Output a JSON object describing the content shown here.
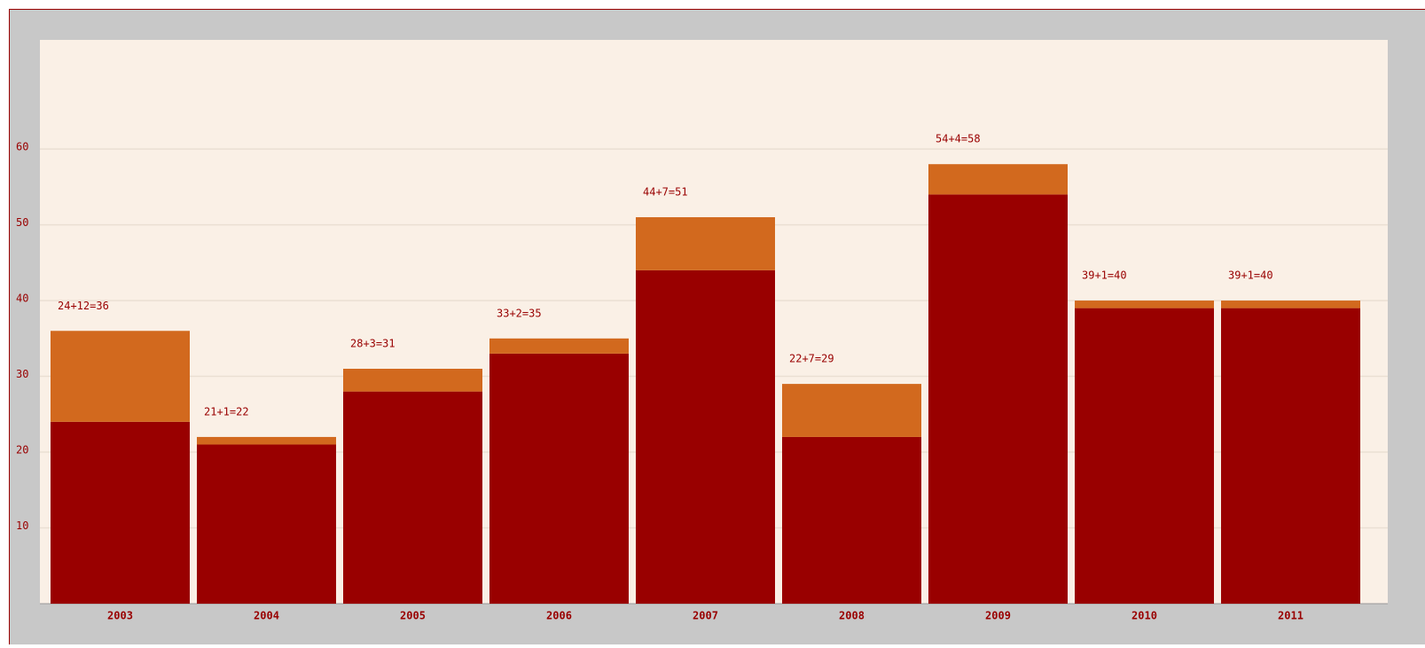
{
  "chart_data": {
    "type": "stacked_bar",
    "categories": [
      "2003",
      "2004",
      "2005",
      "2006",
      "2007",
      "2008",
      "2009",
      "2010",
      "2011"
    ],
    "series": [
      {
        "color": "#990000",
        "values": [
          24,
          21,
          28,
          33,
          44,
          22,
          54,
          39,
          39
        ]
      },
      {
        "color": "#d2691e",
        "values": [
          12,
          1,
          3,
          2,
          7,
          7,
          4,
          1,
          1
        ]
      }
    ],
    "value_labels": [
      "24+12=36",
      "21+1=22",
      "28+3=31",
      "33+2=35",
      "44+7=51",
      "22+7=29",
      "54+4=58",
      "39+1=40",
      "39+1=40"
    ],
    "ylim": [
      0,
      74.4
    ],
    "yticks": [
      10,
      20,
      30,
      40,
      50,
      60
    ],
    "grid": true
  }
}
